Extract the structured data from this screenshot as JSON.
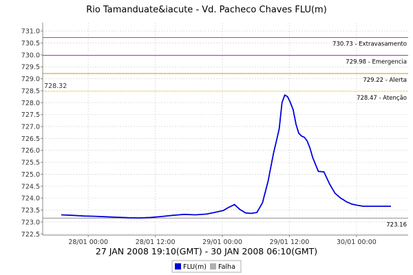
{
  "chart_data": {
    "type": "line",
    "title": "Rio Tamanduate&iacute - Vd. Pacheco Chaves FLU(m)",
    "xlabel": "27 JAN 2008 19:10(GMT) - 30 JAN 2008 06:10(GMT)",
    "ylabel": "",
    "x_unit": "hours since 27 JAN 2008 19:10 GMT",
    "x_range": [
      0,
      59
    ],
    "ylim": [
      722.45,
      731.35
    ],
    "yticks": [
      722.5,
      723.0,
      723.5,
      724.0,
      724.5,
      725.0,
      725.5,
      726.0,
      726.5,
      727.0,
      727.5,
      728.0,
      728.5,
      729.0,
      729.5,
      730.0,
      730.5,
      731.0
    ],
    "ytick_labels": [
      "722.5",
      "723.0",
      "723.5",
      "724.0",
      "724.5",
      "725.0",
      "725.5",
      "726.0",
      "726.5",
      "727.0",
      "727.5",
      "728.0",
      "728.5",
      "729.0",
      "729.5",
      "730.0",
      "730.5",
      "731.0"
    ],
    "xticks": [
      {
        "x": 4.83,
        "label": "28/01 00:00"
      },
      {
        "x": 16.83,
        "label": "28/01 12:00"
      },
      {
        "x": 28.83,
        "label": "29/01 00:00"
      },
      {
        "x": 40.83,
        "label": "29/01 12:00"
      },
      {
        "x": 52.83,
        "label": "30/01 00:00"
      }
    ],
    "grid": true,
    "legend_position": "bottom",
    "reference_lines": [
      {
        "value": 730.73,
        "label": "730.73 - Extravasamento",
        "color": "#d05050"
      },
      {
        "value": 729.98,
        "label": "729.98 - Emergencia",
        "color": "#cc33cc"
      },
      {
        "value": 729.22,
        "label": "729.22 - Alerta",
        "color": "#d4a020"
      },
      {
        "value": 728.47,
        "label": "728.47 - Atenção",
        "color": "#ffe060"
      },
      {
        "value": 723.16,
        "label": "723.16",
        "color": "#999999"
      }
    ],
    "current_value_label": "728.32",
    "series": [
      {
        "name": "FLU(m)",
        "color": "#0000dd",
        "x": [
          0,
          2,
          4,
          6,
          8,
          10,
          12,
          14,
          16,
          18,
          20,
          22,
          24,
          26,
          27,
          28,
          29,
          30,
          31,
          32,
          33,
          34,
          35,
          36,
          37,
          38,
          38.5,
          39,
          39.5,
          40,
          40.5,
          41,
          41.5,
          42,
          42.5,
          43,
          43.5,
          44,
          44.5,
          45,
          46,
          47,
          48,
          49,
          50,
          50.5,
          51,
          51.5,
          52,
          53,
          53.5,
          54,
          55,
          56,
          57,
          58,
          59
        ],
        "values": [
          723.3,
          723.28,
          723.25,
          723.24,
          723.22,
          723.2,
          723.18,
          723.17,
          723.19,
          723.23,
          723.28,
          723.32,
          723.3,
          723.33,
          723.38,
          723.43,
          723.48,
          723.62,
          723.73,
          723.52,
          723.38,
          723.36,
          723.4,
          723.8,
          724.7,
          725.9,
          726.4,
          726.9,
          728.0,
          728.32,
          728.25,
          728.0,
          727.7,
          727.1,
          726.72,
          726.6,
          726.55,
          726.4,
          726.1,
          725.7,
          725.12,
          725.1,
          724.6,
          724.2,
          724.0,
          723.93,
          723.85,
          723.8,
          723.75,
          723.7,
          723.68,
          723.66,
          723.66,
          723.66,
          723.66,
          723.66,
          723.66
        ]
      }
    ],
    "legend_entries": [
      {
        "label": "FLU(m)",
        "color": "#0000dd"
      },
      {
        "label": "Falha",
        "color": "#b0b0b0"
      }
    ]
  }
}
